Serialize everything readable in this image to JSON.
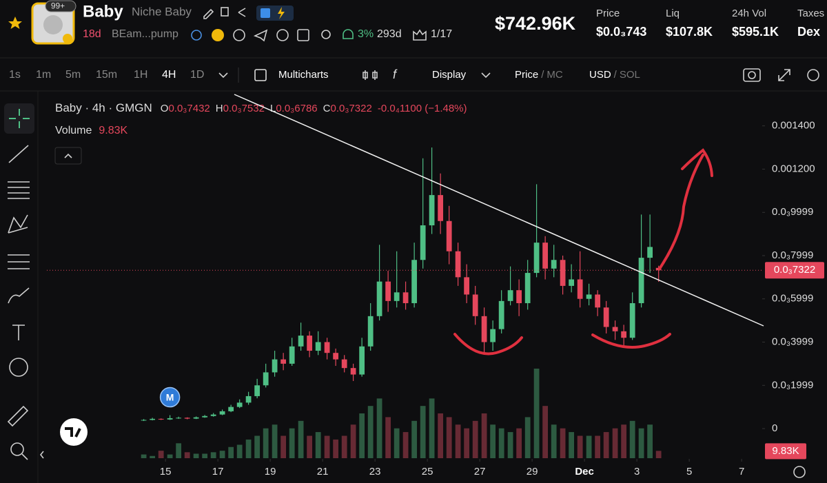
{
  "header": {
    "badge": "99+",
    "name": "Baby",
    "subtitle": "Niche Baby",
    "age": "18d",
    "address": "BEam...pump",
    "holders_pct": "3%",
    "days": "293d",
    "ratio": "1/17",
    "market_cap": "$742.96K",
    "stats": [
      {
        "label": "Price",
        "value": "$0.0₃743"
      },
      {
        "label": "Liq",
        "value": "$107.8K"
      },
      {
        "label": "24h Vol",
        "value": "$595.1K"
      },
      {
        "label": "Taxes",
        "value": "Dex"
      }
    ]
  },
  "toolbar": {
    "intervals": [
      "1s",
      "1m",
      "5m",
      "15m",
      "1H",
      "4H",
      "1D"
    ],
    "active_interval": 5,
    "multicharts": "Multicharts",
    "display": "Display",
    "price": "Price",
    "mc": "MC",
    "usd": "USD",
    "sol": "SOL",
    "separator": "/"
  },
  "chart_data": {
    "type": "candlestick",
    "title": "Baby · 4h · GMGN",
    "ohlc": [
      {
        "key": "O",
        "value": "0.0₃7432"
      },
      {
        "key": "H",
        "value": "0.0₃7532"
      },
      {
        "key": "L",
        "value": "0.0₃6786"
      },
      {
        "key": "C",
        "value": "0.0₃7322"
      }
    ],
    "change": "-0.0₄1100 (−1.48%)",
    "volume_title": "Volume",
    "volume_label": "9.83K",
    "last_price_label": "0.0₃7322",
    "marker_label": "M",
    "up_color": "#4fbf85",
    "down_color": "#e5475c",
    "volume_up_color": "#2d5a41",
    "volume_down_color": "#672a34",
    "grid": false,
    "x": [
      14.17,
      14.5,
      14.83,
      15.17,
      15.5,
      15.83,
      16.17,
      16.5,
      16.83,
      17.17,
      17.5,
      17.83,
      18.17,
      18.5,
      18.83,
      19.17,
      19.5,
      19.83,
      20.17,
      20.5,
      20.83,
      21.17,
      21.5,
      21.83,
      22.17,
      22.5,
      22.83,
      23.17,
      23.5,
      23.83,
      24.17,
      24.5,
      24.83,
      25.17,
      25.5,
      25.83,
      26.17,
      26.5,
      26.83,
      27.17,
      27.5,
      27.83,
      28.17,
      28.5,
      28.83,
      29.17,
      29.5,
      29.83,
      30.17,
      30.5,
      30.83,
      31.17,
      31.5,
      31.83,
      32.17,
      32.5,
      32.83,
      33.17,
      33.5,
      33.83
    ],
    "open": [
      3.8e-05,
      4e-05,
      4.5e-05,
      4.2e-05,
      4.8e-05,
      5e-05,
      4.6e-05,
      5.2e-05,
      5.8e-05,
      6.5e-05,
      8e-05,
      0.0001,
      0.00012,
      0.00015,
      0.0002,
      0.00026,
      0.00032,
      0.0003,
      0.00038,
      0.00043,
      0.00036,
      0.0004,
      0.00035,
      0.00032,
      0.00028,
      0.00025,
      0.00038,
      0.00052,
      0.00068,
      0.00059,
      0.00063,
      0.00058,
      0.00078,
      0.00094,
      0.00108,
      0.00096,
      0.00082,
      0.0007,
      0.00062,
      0.00052,
      0.0004,
      0.00046,
      0.00059,
      0.00064,
      0.00058,
      0.00072,
      0.00086,
      0.00074,
      0.00078,
      0.00066,
      0.00069,
      0.0006,
      0.00062,
      0.00056,
      0.00047,
      0.00045,
      0.00042,
      0.00058,
      0.00079,
      0.0007432
    ],
    "high": [
      4.4e-05,
      5e-05,
      4.7e-05,
      6.2e-05,
      5.5e-05,
      5.2e-05,
      5.6e-05,
      6.3e-05,
      7.2e-05,
      8.8e-05,
      0.00011,
      0.000135,
      0.00017,
      0.00023,
      0.0003,
      0.00036,
      0.00035,
      0.00042,
      0.00049,
      0.00045,
      0.00045,
      0.00042,
      0.00037,
      0.00034,
      0.0003,
      0.00042,
      0.00058,
      0.00085,
      0.00073,
      0.00082,
      0.00068,
      0.00086,
      0.00125,
      0.0013,
      0.00118,
      0.00103,
      0.00086,
      0.00076,
      0.00066,
      0.00056,
      0.0005,
      0.00064,
      0.00075,
      0.00069,
      0.00078,
      0.00113,
      0.00089,
      0.00085,
      0.0008,
      0.00076,
      0.00082,
      0.00067,
      0.00064,
      0.00059,
      0.0005,
      0.00048,
      0.00063,
      0.00099,
      0.00099,
      0.0007532
    ],
    "low": [
      3.5e-05,
      3.8e-05,
      4e-05,
      4e-05,
      4.5e-05,
      4.3e-05,
      4.4e-05,
      5e-05,
      5.5e-05,
      6.2e-05,
      7.6e-05,
      9.5e-05,
      0.00011,
      0.00014,
      0.00019,
      0.00024,
      0.00027,
      0.00029,
      0.00036,
      0.00033,
      0.00034,
      0.00032,
      0.00029,
      0.00026,
      0.00022,
      0.00024,
      0.00036,
      0.0005,
      0.00054,
      0.00056,
      0.00055,
      0.00056,
      0.00074,
      0.0009,
      0.0009,
      0.00076,
      0.00066,
      0.00058,
      0.00048,
      0.00035,
      0.00036,
      0.00044,
      0.00057,
      0.00052,
      0.00055,
      0.0007,
      0.00069,
      0.0007,
      0.00062,
      0.00063,
      0.00056,
      0.00057,
      0.00052,
      0.00044,
      0.00041,
      0.00038,
      0.00041,
      0.00056,
      0.00072,
      0.0006786
    ],
    "close": [
      4e-05,
      4.5e-05,
      4.2e-05,
      4.8e-05,
      5e-05,
      4.6e-05,
      5.2e-05,
      5.8e-05,
      6.5e-05,
      8e-05,
      0.0001,
      0.00012,
      0.00015,
      0.0002,
      0.00026,
      0.00032,
      0.0003,
      0.00038,
      0.00043,
      0.00036,
      0.0004,
      0.00035,
      0.00032,
      0.00028,
      0.00025,
      0.00038,
      0.00052,
      0.00068,
      0.00059,
      0.00063,
      0.00058,
      0.00078,
      0.00094,
      0.00108,
      0.00096,
      0.00082,
      0.0007,
      0.00062,
      0.00052,
      0.0004,
      0.00046,
      0.00059,
      0.00064,
      0.00058,
      0.00072,
      0.00086,
      0.00074,
      0.00078,
      0.00066,
      0.00069,
      0.0006,
      0.00062,
      0.00056,
      0.00047,
      0.00045,
      0.00042,
      0.00058,
      0.00079,
      0.00084,
      0.0007322
    ],
    "volume": [
      5000,
      3000,
      10000,
      5000,
      20000,
      8000,
      6000,
      6000,
      8000,
      10000,
      15000,
      18000,
      25000,
      30000,
      40000,
      45000,
      30000,
      40000,
      50000,
      30000,
      35000,
      30000,
      25000,
      30000,
      45000,
      60000,
      70000,
      80000,
      55000,
      40000,
      35000,
      50000,
      70000,
      80000,
      60000,
      55000,
      45000,
      40000,
      50000,
      60000,
      45000,
      40000,
      35000,
      40000,
      55000,
      120000,
      70000,
      45000,
      40000,
      35000,
      30000,
      30000,
      30000,
      35000,
      40000,
      45000,
      50000,
      40000,
      45000,
      9830
    ],
    "xlim": [
      10.47,
      37.76
    ],
    "xticks": [
      15,
      17,
      19,
      21,
      23,
      25,
      27,
      29,
      {
        "value": 31,
        "label": "Dec"
      },
      {
        "value": 33,
        "label": "3"
      },
      {
        "value": 35,
        "label": "5"
      },
      {
        "value": 37,
        "label": "7"
      }
    ],
    "ylim": [
      -0.000137,
      0.001552
    ],
    "yticks": [
      0,
      {
        "value": 0.0001999,
        "label": "0.0₃1999"
      },
      {
        "value": 0.0003999,
        "label": "0.0₃3999"
      },
      {
        "value": 0.0005999,
        "label": "0.0₃5999"
      },
      {
        "value": 0.0007999,
        "label": "0.0₃7999"
      },
      {
        "value": 0.0009999,
        "label": "0.0₃9999"
      },
      {
        "value": 0.0012,
        "label": "0.001200"
      },
      {
        "value": 0.0014,
        "label": "0.001400"
      }
    ],
    "vlim": [
      0,
      120000
    ]
  }
}
